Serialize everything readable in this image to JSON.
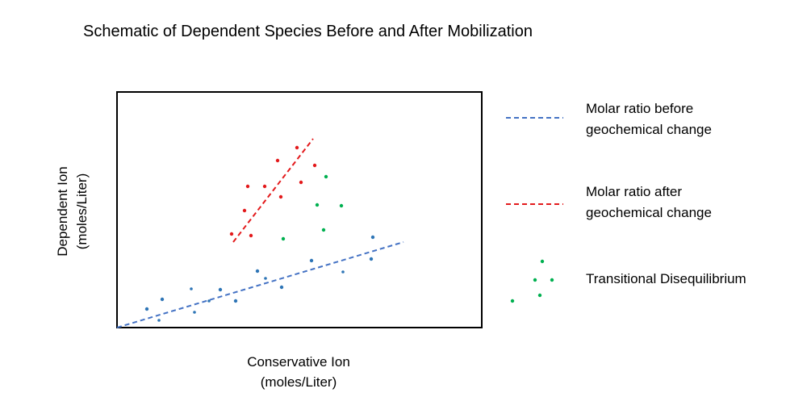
{
  "title": "Schematic of Dependent Species Before and After Mobilization",
  "axes": {
    "ylabel_line1": "Dependent Ion",
    "ylabel_line2": "(moles/Liter)",
    "xlabel_line1": "Conservative Ion",
    "xlabel_line2": "(moles/Liter)"
  },
  "legend": {
    "before_line1": "Molar ratio before",
    "before_line2": "geochemical change",
    "after_line1": "Molar ratio after",
    "after_line2": "geochemical change",
    "transitional": "Transitional Disequilibrium"
  },
  "colors": {
    "before": "#4472c4",
    "before_points": "#2e75b6",
    "after": "#e31a1c",
    "transitional": "#00b050",
    "frame": "#000000"
  }
}
